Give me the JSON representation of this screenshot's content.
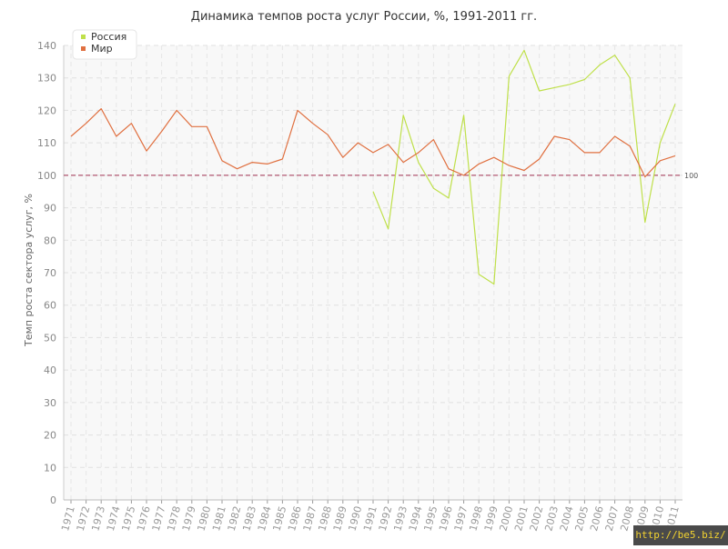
{
  "chart_data": {
    "type": "line",
    "title": "Динамика темпов роста услуг России, %, 1991-2011 гг.",
    "xlabel": "",
    "ylabel": "Темп роста сектора услуг, %",
    "ylim": [
      0,
      140
    ],
    "yticks": [
      0,
      10,
      20,
      30,
      40,
      50,
      60,
      70,
      80,
      90,
      100,
      110,
      120,
      130,
      140
    ],
    "grid": true,
    "legend_position": "top-left",
    "categories": [
      "1971",
      "1972",
      "1973",
      "1974",
      "1975",
      "1976",
      "1977",
      "1978",
      "1979",
      "1980",
      "1981",
      "1982",
      "1983",
      "1984",
      "1985",
      "1986",
      "1987",
      "1988",
      "1989",
      "1990",
      "1991",
      "1992",
      "1993",
      "1994",
      "1995",
      "1996",
      "1997",
      "1998",
      "1999",
      "2000",
      "2001",
      "2002",
      "2003",
      "2004",
      "2005",
      "2006",
      "2007",
      "2008",
      "2009",
      "2010",
      "2011"
    ],
    "series": [
      {
        "name": "Россия",
        "color": "#bfe04a",
        "values": [
          null,
          null,
          null,
          null,
          null,
          null,
          null,
          null,
          null,
          null,
          null,
          null,
          null,
          null,
          null,
          null,
          null,
          null,
          null,
          null,
          95,
          83.5,
          118.5,
          104,
          96,
          93,
          118.5,
          69.5,
          66.5,
          130.5,
          138.5,
          126,
          127,
          128,
          129.5,
          134,
          137,
          130,
          85.5,
          110,
          122
        ]
      },
      {
        "name": "Мир",
        "color": "#e07040",
        "values": [
          112,
          116,
          120.5,
          112,
          116,
          107.5,
          113.5,
          120,
          115,
          115,
          104.5,
          102,
          104,
          103.5,
          105,
          120,
          116,
          112.5,
          105.5,
          110,
          107,
          109.5,
          104,
          107,
          111,
          102,
          100,
          103.5,
          105.5,
          103,
          101.5,
          105,
          112,
          111,
          107,
          107,
          112,
          109,
          99.5,
          104.5,
          106
        ]
      }
    ],
    "reference_line": {
      "value": 100,
      "label": "100",
      "color": "#a03050"
    }
  },
  "watermark": "http://be5.biz/"
}
